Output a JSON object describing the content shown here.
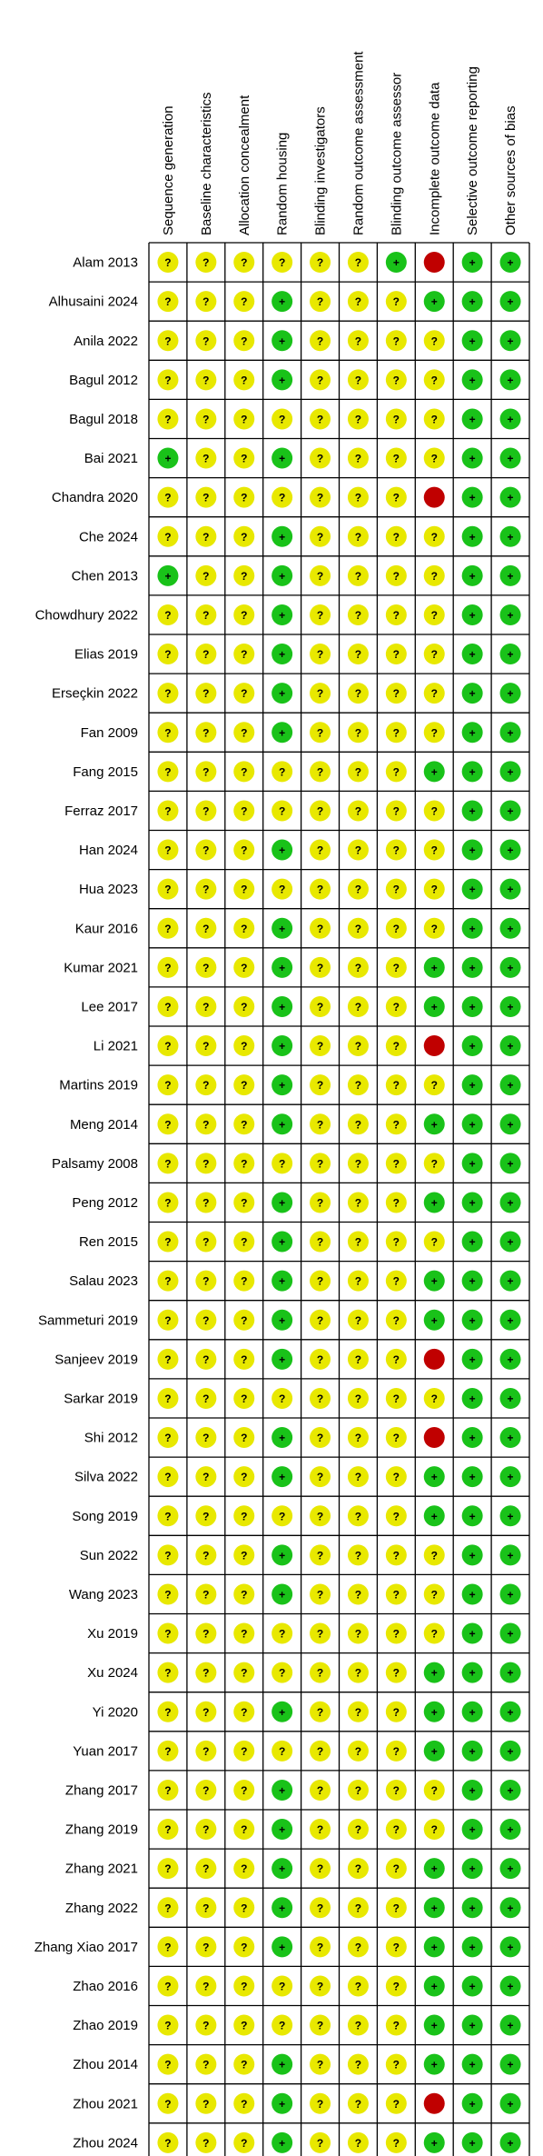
{
  "chart_data": {
    "type": "table",
    "domains": [
      "Sequence generation",
      "Baseline characteristics",
      "Allocation concealment",
      "Random housing",
      "Blinding investigators",
      "Random outcome assessment",
      "Blinding outcome assessor",
      "Incomplete outcome data",
      "Selective outcome reporting",
      "Other sources of bias"
    ],
    "judgement_legend": {
      "L": {
        "meaning": "low risk",
        "symbol": "+",
        "color": "#19c219"
      },
      "U": {
        "meaning": "unclear risk",
        "symbol": "?",
        "color": "#e8e800"
      },
      "H": {
        "meaning": "high risk",
        "symbol": "",
        "color": "#c00000"
      }
    },
    "studies": [
      {
        "name": "Alam 2013",
        "ratings": [
          "U",
          "U",
          "U",
          "U",
          "U",
          "U",
          "L",
          "H",
          "L",
          "L"
        ]
      },
      {
        "name": "Alhusaini 2024",
        "ratings": [
          "U",
          "U",
          "U",
          "L",
          "U",
          "U",
          "U",
          "L",
          "L",
          "L"
        ]
      },
      {
        "name": "Anila 2022",
        "ratings": [
          "U",
          "U",
          "U",
          "L",
          "U",
          "U",
          "U",
          "U",
          "L",
          "L"
        ]
      },
      {
        "name": "Bagul 2012",
        "ratings": [
          "U",
          "U",
          "U",
          "L",
          "U",
          "U",
          "U",
          "U",
          "L",
          "L"
        ]
      },
      {
        "name": "Bagul 2018",
        "ratings": [
          "U",
          "U",
          "U",
          "U",
          "U",
          "U",
          "U",
          "U",
          "L",
          "L"
        ]
      },
      {
        "name": "Bai 2021",
        "ratings": [
          "L",
          "U",
          "U",
          "L",
          "U",
          "U",
          "U",
          "U",
          "L",
          "L"
        ]
      },
      {
        "name": "Chandra 2020",
        "ratings": [
          "U",
          "U",
          "U",
          "U",
          "U",
          "U",
          "U",
          "H",
          "L",
          "L"
        ]
      },
      {
        "name": "Che 2024",
        "ratings": [
          "U",
          "U",
          "U",
          "L",
          "U",
          "U",
          "U",
          "U",
          "L",
          "L"
        ]
      },
      {
        "name": "Chen 2013",
        "ratings": [
          "L",
          "U",
          "U",
          "L",
          "U",
          "U",
          "U",
          "U",
          "L",
          "L"
        ]
      },
      {
        "name": "Chowdhury 2022",
        "ratings": [
          "U",
          "U",
          "U",
          "L",
          "U",
          "U",
          "U",
          "U",
          "L",
          "L"
        ]
      },
      {
        "name": "Elias 2019",
        "ratings": [
          "U",
          "U",
          "U",
          "L",
          "U",
          "U",
          "U",
          "U",
          "L",
          "L"
        ]
      },
      {
        "name": "Erseçkin 2022",
        "ratings": [
          "U",
          "U",
          "U",
          "L",
          "U",
          "U",
          "U",
          "U",
          "L",
          "L"
        ]
      },
      {
        "name": "Fan 2009",
        "ratings": [
          "U",
          "U",
          "U",
          "L",
          "U",
          "U",
          "U",
          "U",
          "L",
          "L"
        ]
      },
      {
        "name": "Fang 2015",
        "ratings": [
          "U",
          "U",
          "U",
          "U",
          "U",
          "U",
          "U",
          "L",
          "L",
          "L"
        ]
      },
      {
        "name": "Ferraz 2017",
        "ratings": [
          "U",
          "U",
          "U",
          "U",
          "U",
          "U",
          "U",
          "U",
          "L",
          "L"
        ]
      },
      {
        "name": "Han 2024",
        "ratings": [
          "U",
          "U",
          "U",
          "L",
          "U",
          "U",
          "U",
          "U",
          "L",
          "L"
        ]
      },
      {
        "name": "Hua 2023",
        "ratings": [
          "U",
          "U",
          "U",
          "U",
          "U",
          "U",
          "U",
          "U",
          "L",
          "L"
        ]
      },
      {
        "name": "Kaur 2016",
        "ratings": [
          "U",
          "U",
          "U",
          "L",
          "U",
          "U",
          "U",
          "U",
          "L",
          "L"
        ]
      },
      {
        "name": "Kumar 2021",
        "ratings": [
          "U",
          "U",
          "U",
          "L",
          "U",
          "U",
          "U",
          "L",
          "L",
          "L"
        ]
      },
      {
        "name": "Lee 2017",
        "ratings": [
          "U",
          "U",
          "U",
          "L",
          "U",
          "U",
          "U",
          "L",
          "L",
          "L"
        ]
      },
      {
        "name": "Li 2021",
        "ratings": [
          "U",
          "U",
          "U",
          "L",
          "U",
          "U",
          "U",
          "H",
          "L",
          "L"
        ]
      },
      {
        "name": "Martins 2019",
        "ratings": [
          "U",
          "U",
          "U",
          "L",
          "U",
          "U",
          "U",
          "U",
          "L",
          "L"
        ]
      },
      {
        "name": "Meng 2014",
        "ratings": [
          "U",
          "U",
          "U",
          "L",
          "U",
          "U",
          "U",
          "L",
          "L",
          "L"
        ]
      },
      {
        "name": "Palsamy 2008",
        "ratings": [
          "U",
          "U",
          "U",
          "U",
          "U",
          "U",
          "U",
          "U",
          "L",
          "L"
        ]
      },
      {
        "name": "Peng 2012",
        "ratings": [
          "U",
          "U",
          "U",
          "L",
          "U",
          "U",
          "U",
          "L",
          "L",
          "L"
        ]
      },
      {
        "name": "Ren 2015",
        "ratings": [
          "U",
          "U",
          "U",
          "L",
          "U",
          "U",
          "U",
          "U",
          "L",
          "L"
        ]
      },
      {
        "name": "Salau 2023",
        "ratings": [
          "U",
          "U",
          "U",
          "L",
          "U",
          "U",
          "U",
          "L",
          "L",
          "L"
        ]
      },
      {
        "name": "Sammeturi 2019",
        "ratings": [
          "U",
          "U",
          "U",
          "L",
          "U",
          "U",
          "U",
          "L",
          "L",
          "L"
        ]
      },
      {
        "name": "Sanjeev 2019",
        "ratings": [
          "U",
          "U",
          "U",
          "L",
          "U",
          "U",
          "U",
          "H",
          "L",
          "L"
        ]
      },
      {
        "name": "Sarkar 2019",
        "ratings": [
          "U",
          "U",
          "U",
          "U",
          "U",
          "U",
          "U",
          "U",
          "L",
          "L"
        ]
      },
      {
        "name": "Shi 2012",
        "ratings": [
          "U",
          "U",
          "U",
          "L",
          "U",
          "U",
          "U",
          "H",
          "L",
          "L"
        ]
      },
      {
        "name": "Silva 2022",
        "ratings": [
          "U",
          "U",
          "U",
          "L",
          "U",
          "U",
          "U",
          "L",
          "L",
          "L"
        ]
      },
      {
        "name": "Song 2019",
        "ratings": [
          "U",
          "U",
          "U",
          "U",
          "U",
          "U",
          "U",
          "L",
          "L",
          "L"
        ]
      },
      {
        "name": "Sun 2022",
        "ratings": [
          "U",
          "U",
          "U",
          "L",
          "U",
          "U",
          "U",
          "U",
          "L",
          "L"
        ]
      },
      {
        "name": "Wang 2023",
        "ratings": [
          "U",
          "U",
          "U",
          "L",
          "U",
          "U",
          "U",
          "U",
          "L",
          "L"
        ]
      },
      {
        "name": "Xu 2019",
        "ratings": [
          "U",
          "U",
          "U",
          "U",
          "U",
          "U",
          "U",
          "U",
          "L",
          "L"
        ]
      },
      {
        "name": "Xu 2024",
        "ratings": [
          "U",
          "U",
          "U",
          "U",
          "U",
          "U",
          "U",
          "L",
          "L",
          "L"
        ]
      },
      {
        "name": "Yi 2020",
        "ratings": [
          "U",
          "U",
          "U",
          "L",
          "U",
          "U",
          "U",
          "L",
          "L",
          "L"
        ]
      },
      {
        "name": "Yuan 2017",
        "ratings": [
          "U",
          "U",
          "U",
          "U",
          "U",
          "U",
          "U",
          "L",
          "L",
          "L"
        ]
      },
      {
        "name": "Zhang 2017",
        "ratings": [
          "U",
          "U",
          "U",
          "L",
          "U",
          "U",
          "U",
          "U",
          "L",
          "L"
        ]
      },
      {
        "name": "Zhang 2019",
        "ratings": [
          "U",
          "U",
          "U",
          "L",
          "U",
          "U",
          "U",
          "U",
          "L",
          "L"
        ]
      },
      {
        "name": "Zhang 2021",
        "ratings": [
          "U",
          "U",
          "U",
          "L",
          "U",
          "U",
          "U",
          "L",
          "L",
          "L"
        ]
      },
      {
        "name": "Zhang 2022",
        "ratings": [
          "U",
          "U",
          "U",
          "L",
          "U",
          "U",
          "U",
          "L",
          "L",
          "L"
        ]
      },
      {
        "name": "Zhang  Xiao 2017",
        "ratings": [
          "U",
          "U",
          "U",
          "L",
          "U",
          "U",
          "U",
          "L",
          "L",
          "L"
        ]
      },
      {
        "name": "Zhao 2016",
        "ratings": [
          "U",
          "U",
          "U",
          "U",
          "U",
          "U",
          "U",
          "L",
          "L",
          "L"
        ]
      },
      {
        "name": "Zhao 2019",
        "ratings": [
          "U",
          "U",
          "U",
          "U",
          "U",
          "U",
          "U",
          "L",
          "L",
          "L"
        ]
      },
      {
        "name": "Zhou 2014",
        "ratings": [
          "U",
          "U",
          "U",
          "L",
          "U",
          "U",
          "U",
          "L",
          "L",
          "L"
        ]
      },
      {
        "name": "Zhou 2021",
        "ratings": [
          "U",
          "U",
          "U",
          "L",
          "U",
          "U",
          "U",
          "H",
          "L",
          "L"
        ]
      },
      {
        "name": "Zhou 2024",
        "ratings": [
          "U",
          "U",
          "U",
          "L",
          "U",
          "U",
          "U",
          "L",
          "L",
          "L"
        ]
      }
    ]
  }
}
